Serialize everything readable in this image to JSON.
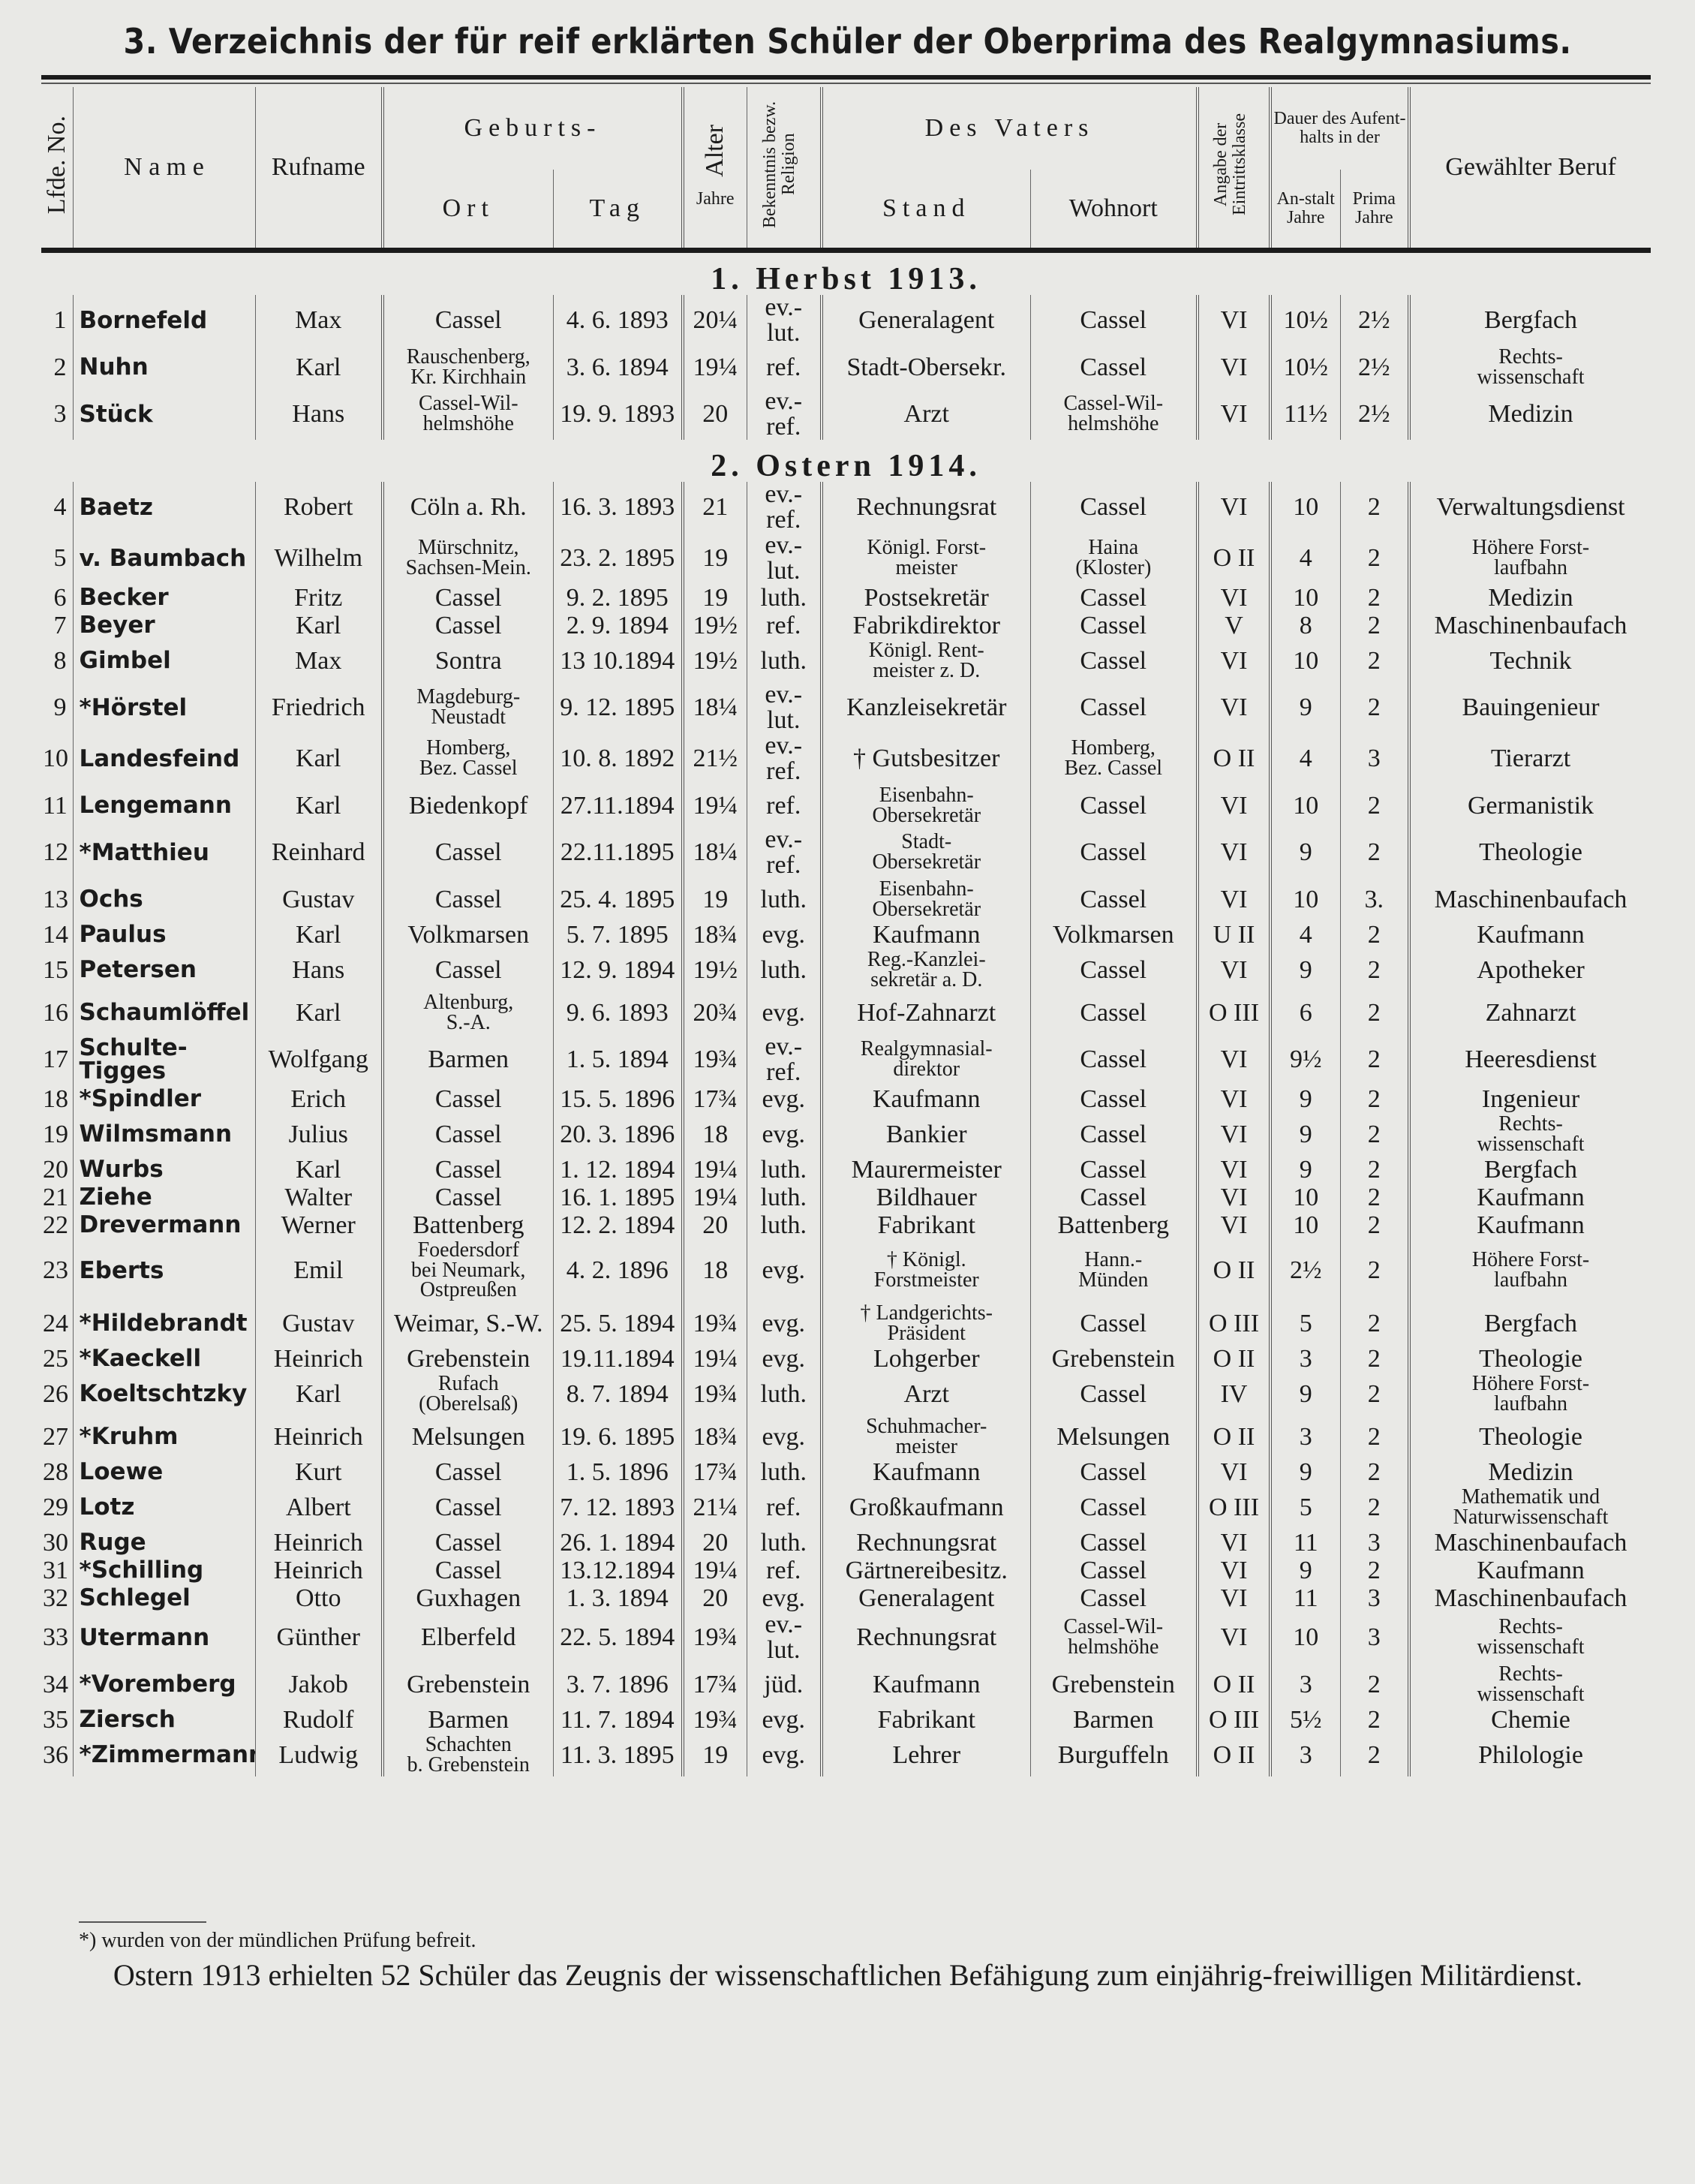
{
  "title": "3. Verzeichnis der für reif erklärten Schüler der Oberprima des Realgymnasiums.",
  "headers": {
    "lfde_no": "Lfde. No.",
    "name": "N a m e",
    "rufname": "Rufname",
    "geburts": "Geburts-",
    "ort": "Ort",
    "tag": "Tag",
    "alter": "Alter",
    "alter_unit": "Jahre",
    "bekenntnis": "Bekenntnis bezw. Religion",
    "des_vaters": "Des Vaters",
    "stand": "Stand",
    "wohnort": "Wohnort",
    "eintrittsklasse": "Angabe der Eintrittsklasse",
    "dauer": "Dauer des Aufent-halts in der",
    "anstalt": "An-stalt",
    "prima": "Prima",
    "anstalt_unit": "Jahre",
    "prima_unit": "Jahre",
    "beruf": "Gewählter Beruf"
  },
  "sections": [
    {
      "heading": "1. Herbst 1913.",
      "rows": [
        [
          "1",
          "Bornefeld",
          "Max",
          "Cassel",
          "4. 6. 1893",
          "20¼",
          "ev.-lut.",
          "Generalagent",
          "Cassel",
          "VI",
          "10½",
          "2½",
          "Bergfach"
        ],
        [
          "2",
          "Nuhn",
          "Karl",
          "Rauschenberg,\nKr. Kirchhain",
          "3. 6. 1894",
          "19¼",
          "ref.",
          "Stadt-Obersekr.",
          "Cassel",
          "VI",
          "10½",
          "2½",
          "Rechts-\nwissenschaft"
        ],
        [
          "3",
          "Stück",
          "Hans",
          "Cassel-Wil-\nhelmshöhe",
          "19. 9. 1893",
          "20",
          "ev.-ref.",
          "Arzt",
          "Cassel-Wil-\nhelmshöhe",
          "VI",
          "11½",
          "2½",
          "Medizin"
        ]
      ]
    },
    {
      "heading": "2. Ostern 1914.",
      "rows": [
        [
          "4",
          "Baetz",
          "Robert",
          "Cöln a. Rh.",
          "16. 3. 1893",
          "21",
          "ev.-ref.",
          "Rechnungsrat",
          "Cassel",
          "VI",
          "10",
          "2",
          "Verwaltungsdienst"
        ],
        [
          "5",
          "v. Baumbach",
          "Wilhelm",
          "Mürschnitz,\nSachsen-Mein.",
          "23. 2. 1895",
          "19",
          "ev.-lut.",
          "Königl. Forst-\nmeister",
          "Haina\n(Kloster)",
          "O II",
          "4",
          "2",
          "Höhere Forst-\nlaufbahn"
        ],
        [
          "6",
          "Becker",
          "Fritz",
          "Cassel",
          "9. 2. 1895",
          "19",
          "luth.",
          "Postsekretär",
          "Cassel",
          "VI",
          "10",
          "2",
          "Medizin"
        ],
        [
          "7",
          "Beyer",
          "Karl",
          "Cassel",
          "2. 9. 1894",
          "19½",
          "ref.",
          "Fabrikdirektor",
          "Cassel",
          "V",
          "8",
          "2",
          "Maschinenbaufach"
        ],
        [
          "8",
          "Gimbel",
          "Max",
          "Sontra",
          "13 10.1894",
          "19½",
          "luth.",
          "Königl. Rent-\nmeister z. D.",
          "Cassel",
          "VI",
          "10",
          "2",
          "Technik"
        ],
        [
          "9",
          "*Hörstel",
          "Friedrich",
          "Magdeburg-\nNeustadt",
          "9. 12. 1895",
          "18¼",
          "ev.-lut.",
          "Kanzleisekretär",
          "Cassel",
          "VI",
          "9",
          "2",
          "Bauingenieur"
        ],
        [
          "10",
          "Landesfeind",
          "Karl",
          "Homberg,\nBez. Cassel",
          "10. 8. 1892",
          "21½",
          "ev.-ref.",
          "† Gutsbesitzer",
          "Homberg,\nBez. Cassel",
          "O II",
          "4",
          "3",
          "Tierarzt"
        ],
        [
          "11",
          "Lengemann",
          "Karl",
          "Biedenkopf",
          "27.11.1894",
          "19¼",
          "ref.",
          "Eisenbahn-\nObersekretär",
          "Cassel",
          "VI",
          "10",
          "2",
          "Germanistik"
        ],
        [
          "12",
          "*Matthieu",
          "Reinhard",
          "Cassel",
          "22.11.1895",
          "18¼",
          "ev.-ref.",
          "Stadt-\nObersekretär",
          "Cassel",
          "VI",
          "9",
          "2",
          "Theologie"
        ],
        [
          "13",
          "Ochs",
          "Gustav",
          "Cassel",
          "25. 4. 1895",
          "19",
          "luth.",
          "Eisenbahn-\nObersekretär",
          "Cassel",
          "VI",
          "10",
          "3.",
          "Maschinenbaufach"
        ],
        [
          "14",
          "Paulus",
          "Karl",
          "Volkmarsen",
          "5. 7. 1895",
          "18¾",
          "evg.",
          "Kaufmann",
          "Volkmarsen",
          "U II",
          "4",
          "2",
          "Kaufmann"
        ],
        [
          "15",
          "Petersen",
          "Hans",
          "Cassel",
          "12. 9. 1894",
          "19½",
          "luth.",
          "Reg.-Kanzlei-\nsekretär a. D.",
          "Cassel",
          "VI",
          "9",
          "2",
          "Apotheker"
        ],
        [
          "16",
          "Schaumlöffel",
          "Karl",
          "Altenburg,\nS.-A.",
          "9. 6. 1893",
          "20¾",
          "evg.",
          "Hof-Zahnarzt",
          "Cassel",
          "O III",
          "6",
          "2",
          "Zahnarzt"
        ],
        [
          "17",
          "Schulte-\n   Tigges",
          "Wolfgang",
          "Barmen",
          "1. 5. 1894",
          "19¾",
          "ev.-ref.",
          "Realgymnasial-\ndirektor",
          "Cassel",
          "VI",
          "9½",
          "2",
          "Heeresdienst"
        ],
        [
          "18",
          "*Spindler",
          "Erich",
          "Cassel",
          "15. 5. 1896",
          "17¾",
          "evg.",
          "Kaufmann",
          "Cassel",
          "VI",
          "9",
          "2",
          "Ingenieur"
        ],
        [
          "19",
          "Wilmsmann",
          "Julius",
          "Cassel",
          "20. 3. 1896",
          "18",
          "evg.",
          "Bankier",
          "Cassel",
          "VI",
          "9",
          "2",
          "Rechts-\nwissenschaft"
        ],
        [
          "20",
          "Wurbs",
          "Karl",
          "Cassel",
          "1. 12. 1894",
          "19¼",
          "luth.",
          "Maurermeister",
          "Cassel",
          "VI",
          "9",
          "2",
          "Bergfach"
        ],
        [
          "21",
          "Ziehe",
          "Walter",
          "Cassel",
          "16. 1. 1895",
          "19¼",
          "luth.",
          "Bildhauer",
          "Cassel",
          "VI",
          "10",
          "2",
          "Kaufmann"
        ],
        [
          "22",
          "Drevermann",
          "Werner",
          "Battenberg",
          "12. 2. 1894",
          "20",
          "luth.",
          "Fabrikant",
          "Battenberg",
          "VI",
          "10",
          "2",
          "Kaufmann"
        ],
        [
          "23",
          "Eberts",
          "Emil",
          "Foedersdorf\nbei Neumark,\nOstpreußen",
          "4. 2. 1896",
          "18",
          "evg.",
          "† Königl.\nForstmeister",
          "Hann.-\nMünden",
          "O II",
          "2½",
          "2",
          "Höhere Forst-\nlaufbahn"
        ],
        [
          "24",
          "*Hildebrandt",
          "Gustav",
          "Weimar, S.-W.",
          "25. 5. 1894",
          "19¾",
          "evg.",
          "† Landgerichts-\nPräsident",
          "Cassel",
          "O III",
          "5",
          "2",
          "Bergfach"
        ],
        [
          "25",
          "*Kaeckell",
          "Heinrich",
          "Grebenstein",
          "19.11.1894",
          "19¼",
          "evg.",
          "Lohgerber",
          "Grebenstein",
          "O II",
          "3",
          "2",
          "Theologie"
        ],
        [
          "26",
          "Koeltschtzky",
          "Karl",
          "Rufach\n(Oberelsaß)",
          "8. 7. 1894",
          "19¾",
          "luth.",
          "Arzt",
          "Cassel",
          "IV",
          "9",
          "2",
          "Höhere Forst-\nlaufbahn"
        ],
        [
          "27",
          "*Kruhm",
          "Heinrich",
          "Melsungen",
          "19. 6. 1895",
          "18¾",
          "evg.",
          "Schuhmacher-\nmeister",
          "Melsungen",
          "O II",
          "3",
          "2",
          "Theologie"
        ],
        [
          "28",
          "Loewe",
          "Kurt",
          "Cassel",
          "1. 5. 1896",
          "17¾",
          "luth.",
          "Kaufmann",
          "Cassel",
          "VI",
          "9",
          "2",
          "Medizin"
        ],
        [
          "29",
          "Lotz",
          "Albert",
          "Cassel",
          "7. 12. 1893",
          "21¼",
          "ref.",
          "Großkaufmann",
          "Cassel",
          "O III",
          "5",
          "2",
          "Mathematik und\nNaturwissenschaft"
        ],
        [
          "30",
          "Ruge",
          "Heinrich",
          "Cassel",
          "26. 1. 1894",
          "20",
          "luth.",
          "Rechnungsrat",
          "Cassel",
          "VI",
          "11",
          "3",
          "Maschinenbaufach"
        ],
        [
          "31",
          "*Schilling",
          "Heinrich",
          "Cassel",
          "13.12.1894",
          "19¼",
          "ref.",
          "Gärtnereibesitz.",
          "Cassel",
          "VI",
          "9",
          "2",
          "Kaufmann"
        ],
        [
          "32",
          "Schlegel",
          "Otto",
          "Guxhagen",
          "1. 3. 1894",
          "20",
          "evg.",
          "Generalagent",
          "Cassel",
          "VI",
          "11",
          "3",
          "Maschinenbaufach"
        ],
        [
          "33",
          "Utermann",
          "Günther",
          "Elberfeld",
          "22. 5. 1894",
          "19¾",
          "ev.-lut.",
          "Rechnungsrat",
          "Cassel-Wil-\nhelmshöhe",
          "VI",
          "10",
          "3",
          "Rechts-\nwissenschaft"
        ],
        [
          "34",
          "*Voremberg",
          "Jakob",
          "Grebenstein",
          "3. 7. 1896",
          "17¾",
          "jüd.",
          "Kaufmann",
          "Grebenstein",
          "O II",
          "3",
          "2",
          "Rechts-\nwissenschaft"
        ],
        [
          "35",
          "Ziersch",
          "Rudolf",
          "Barmen",
          "11. 7. 1894",
          "19¾",
          "evg.",
          "Fabrikant",
          "Barmen",
          "O III",
          "5½",
          "2",
          "Chemie"
        ],
        [
          "36",
          "*Zimmermann",
          "Ludwig",
          "Schachten\nb. Grebenstein",
          "11. 3. 1895",
          "19",
          "evg.",
          "Lehrer",
          "Burguffeln",
          "O II",
          "3",
          "2",
          "Philologie"
        ]
      ]
    }
  ],
  "footnote": "*) wurden von der mündlichen Prüfung befreit.",
  "closing_text": "Ostern 1913 erhielten 52 Schüler das Zeugnis der wissenschaftlichen Befähigung zum einjährig-freiwilligen Militärdienst."
}
